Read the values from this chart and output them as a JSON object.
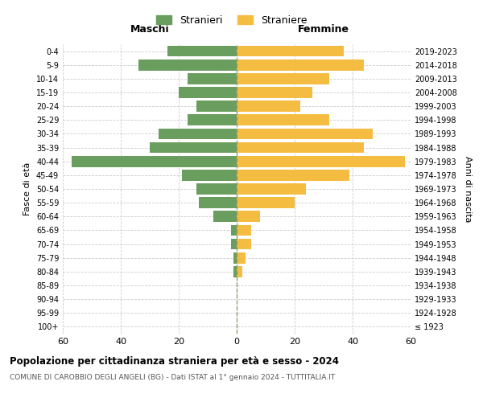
{
  "age_groups": [
    "100+",
    "95-99",
    "90-94",
    "85-89",
    "80-84",
    "75-79",
    "70-74",
    "65-69",
    "60-64",
    "55-59",
    "50-54",
    "45-49",
    "40-44",
    "35-39",
    "30-34",
    "25-29",
    "20-24",
    "15-19",
    "10-14",
    "5-9",
    "0-4"
  ],
  "birth_years": [
    "≤ 1923",
    "1924-1928",
    "1929-1933",
    "1934-1938",
    "1939-1943",
    "1944-1948",
    "1949-1953",
    "1954-1958",
    "1959-1963",
    "1964-1968",
    "1969-1973",
    "1974-1978",
    "1979-1983",
    "1984-1988",
    "1989-1993",
    "1994-1998",
    "1999-2003",
    "2004-2008",
    "2009-2013",
    "2014-2018",
    "2019-2023"
  ],
  "maschi": [
    0,
    0,
    0,
    0,
    1,
    1,
    2,
    2,
    8,
    13,
    14,
    19,
    57,
    30,
    27,
    17,
    14,
    20,
    17,
    34,
    24
  ],
  "femmine": [
    0,
    0,
    0,
    0,
    2,
    3,
    5,
    5,
    8,
    20,
    24,
    39,
    58,
    44,
    47,
    32,
    22,
    26,
    32,
    44,
    37
  ],
  "maschi_color": "#6a9e5e",
  "femmine_color": "#f5bc42",
  "title": "Popolazione per cittadinanza straniera per età e sesso - 2024",
  "subtitle": "COMUNE DI CAROBBIO DEGLI ANGELI (BG) - Dati ISTAT al 1° gennaio 2024 - TUTTITALIA.IT",
  "xlabel_left": "Maschi",
  "xlabel_right": "Femmine",
  "ylabel_left": "Fasce di età",
  "ylabel_right": "Anni di nascita",
  "legend_stranieri": "Stranieri",
  "legend_straniere": "Straniere",
  "xlim": 60,
  "background_color": "#ffffff",
  "grid_color": "#cccccc",
  "bar_height": 0.8
}
